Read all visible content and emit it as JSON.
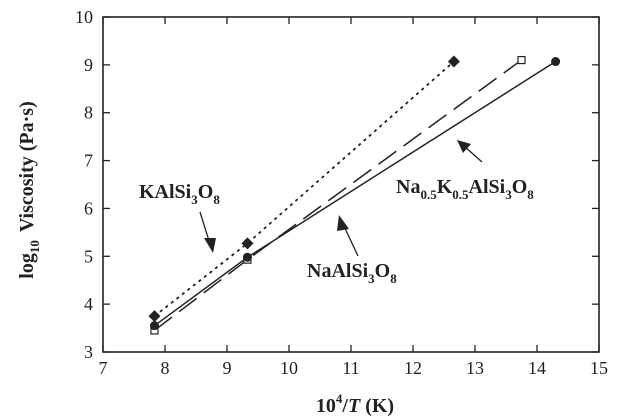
{
  "chart_data": {
    "type": "line",
    "xlabel_base": "10",
    "xlabel_sup": "4",
    "xlabel_var": "T",
    "xlabel_unit": " (K)",
    "ylabel_prefix": "log",
    "ylabel_sub": "10",
    "ylabel_text": "Viscosity (Pa·s)",
    "xlim": [
      7,
      15
    ],
    "ylim": [
      3,
      10
    ],
    "xticks": [
      7,
      8,
      9,
      10,
      11,
      12,
      13,
      14,
      15
    ],
    "yticks": [
      3,
      4,
      5,
      6,
      7,
      8,
      9,
      10
    ],
    "grid": false,
    "series": [
      {
        "name": "KAlSi3O8",
        "label_parts": [
          "KAlSi",
          "3",
          "O",
          "8"
        ],
        "marker": "filled-diamond",
        "line": "dotted",
        "x": [
          7.83,
          9.33,
          12.66
        ],
        "y": [
          3.75,
          5.27,
          9.07
        ]
      },
      {
        "name": "NaAlSi3O8",
        "label_parts": [
          "NaAlSi",
          "3",
          "O",
          "8"
        ],
        "marker": "open-square",
        "line": "long-dash",
        "x": [
          7.83,
          9.33,
          13.75
        ],
        "y": [
          3.45,
          4.93,
          9.1
        ]
      },
      {
        "name": "Na0.5K0.5AlSi3O8",
        "label_parts": [
          "Na",
          "0.5",
          "K",
          "0.5",
          "AlSi",
          "3",
          "O",
          "8"
        ],
        "marker": "filled-circle",
        "line": "solid",
        "x": [
          7.83,
          9.33,
          14.3
        ],
        "y": [
          3.55,
          4.98,
          9.07
        ]
      }
    ]
  }
}
